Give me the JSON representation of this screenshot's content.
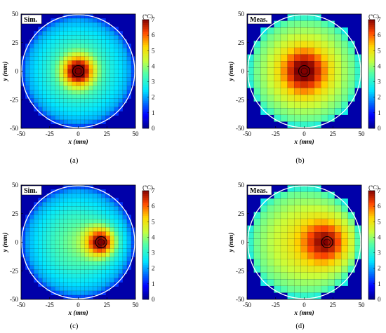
{
  "colorbar": {
    "unit": "(°C)",
    "min": 0,
    "max": 7,
    "ticks": [
      "0",
      "1",
      "2",
      "3",
      "4",
      "5",
      "6",
      "7"
    ]
  },
  "axes": {
    "x_label": "x (mm)",
    "y_label": "y (mm)",
    "x_ticks": [
      "-50",
      "-25",
      "0",
      "25",
      "50"
    ],
    "y_ticks": [
      "50",
      "25",
      "0",
      "-25",
      "-50"
    ],
    "range": [
      -50,
      50
    ]
  },
  "grid_colors": {
    "circle": "#ffffff",
    "marker": "#000000",
    "cell_line": "#1a1a1a"
  },
  "chart_data": [
    {
      "type": "heatmap",
      "panel": "(a)",
      "tag": "Sim.",
      "hotspot": [
        0,
        0
      ],
      "marker": [
        0,
        0
      ],
      "peak_temp": 7,
      "grid_cells": 27,
      "xlim": [
        -50,
        50
      ],
      "ylim": [
        -50,
        50
      ]
    },
    {
      "type": "heatmap",
      "panel": "(b)",
      "tag": "Meas.",
      "hotspot": [
        0,
        0
      ],
      "marker": [
        0,
        0
      ],
      "peak_temp": 6.5,
      "grid_cells": 17,
      "xlim": [
        -50,
        50
      ],
      "ylim": [
        -50,
        50
      ]
    },
    {
      "type": "heatmap",
      "panel": "(c)",
      "tag": "Sim.",
      "hotspot": [
        20,
        0
      ],
      "marker": [
        20,
        0
      ],
      "peak_temp": 7,
      "grid_cells": 27,
      "xlim": [
        -50,
        50
      ],
      "ylim": [
        -50,
        50
      ]
    },
    {
      "type": "heatmap",
      "panel": "(d)",
      "tag": "Meas.",
      "hotspot": [
        20,
        0
      ],
      "marker": [
        20,
        0
      ],
      "peak_temp": 6.5,
      "grid_cells": 17,
      "xlim": [
        -50,
        50
      ],
      "ylim": [
        -50,
        50
      ]
    }
  ]
}
